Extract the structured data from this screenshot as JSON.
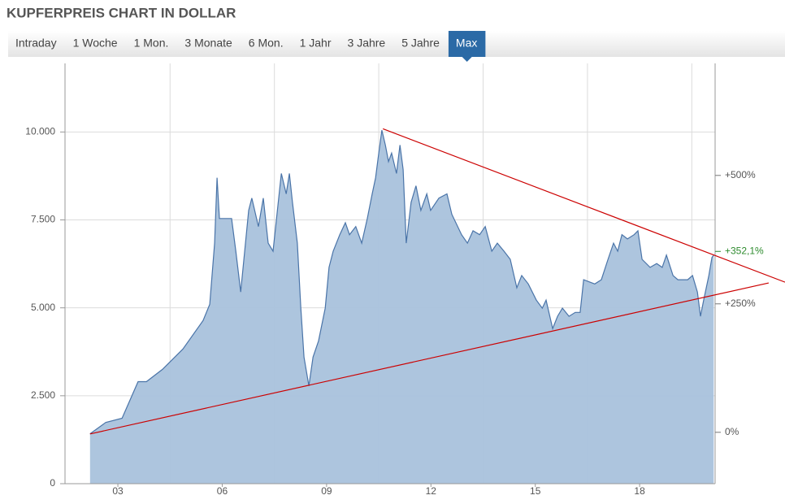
{
  "chart_data": {
    "type": "area",
    "title": "KUPFERPREIS CHART IN DOLLAR",
    "tabs": [
      {
        "label": "Intraday",
        "active": false
      },
      {
        "label": "1 Woche",
        "active": false
      },
      {
        "label": "1 Mon.",
        "active": false
      },
      {
        "label": "3 Monate",
        "active": false
      },
      {
        "label": "6 Mon.",
        "active": false
      },
      {
        "label": "1 Jahr",
        "active": false
      },
      {
        "label": "3 Jahre",
        "active": false
      },
      {
        "label": "5 Jahre",
        "active": false
      },
      {
        "label": "Max",
        "active": true
      }
    ],
    "x": [
      2.2,
      2.65,
      3.12,
      3.58,
      3.82,
      4.28,
      4.87,
      5.45,
      5.64,
      5.78,
      5.85,
      5.92,
      6.27,
      6.39,
      6.53,
      6.76,
      6.85,
      7.04,
      7.18,
      7.32,
      7.46,
      7.7,
      7.84,
      7.93,
      8.02,
      8.16,
      8.26,
      8.35,
      8.49,
      8.61,
      8.77,
      8.96,
      9.07,
      9.19,
      9.38,
      9.54,
      9.66,
      9.84,
      10.01,
      10.17,
      10.31,
      10.41,
      10.5,
      10.59,
      10.69,
      10.78,
      10.87,
      11.01,
      11.11,
      11.2,
      11.29,
      11.43,
      11.57,
      11.71,
      11.88,
      11.99,
      12.23,
      12.46,
      12.6,
      12.88,
      13.05,
      13.21,
      13.4,
      13.56,
      13.75,
      13.91,
      14.1,
      14.28,
      14.47,
      14.61,
      14.8,
      15.03,
      15.2,
      15.31,
      15.5,
      15.64,
      15.78,
      15.97,
      16.15,
      16.29,
      16.39,
      16.71,
      16.9,
      17.09,
      17.25,
      17.37,
      17.49,
      17.65,
      17.84,
      17.95,
      18.07,
      18.3,
      18.49,
      18.65,
      18.77,
      18.96,
      19.1,
      19.38,
      19.52,
      19.66,
      19.75,
      19.84,
      19.99,
      20.08,
      20.13
    ],
    "values": [
      1420,
      1740,
      1860,
      2900,
      2900,
      3250,
      3830,
      4640,
      5100,
      6840,
      8700,
      7540,
      7540,
      6610,
      5450,
      7770,
      8120,
      7310,
      8120,
      6840,
      6610,
      8820,
      8240,
      8820,
      8000,
      6840,
      4990,
      3600,
      2780,
      3600,
      4060,
      4990,
      6150,
      6610,
      7080,
      7420,
      7080,
      7310,
      6840,
      7540,
      8240,
      8700,
      9400,
      10050,
      9630,
      9160,
      9400,
      8820,
      9630,
      8930,
      6840,
      8000,
      8470,
      7770,
      8240,
      7770,
      8120,
      8240,
      7660,
      7080,
      6840,
      7190,
      7080,
      7310,
      6610,
      6840,
      6610,
      6380,
      5570,
      5920,
      5680,
      5220,
      4990,
      5220,
      4410,
      4760,
      4990,
      4760,
      4870,
      4870,
      5800,
      5680,
      5800,
      6380,
      6840,
      6610,
      7080,
      6960,
      7080,
      7190,
      6380,
      6150,
      6260,
      6150,
      6500,
      5920,
      5800,
      5800,
      5920,
      5450,
      4760,
      5220,
      5920,
      6430,
      6500
    ],
    "color": "#4a74a8",
    "fill_color": "#a9c2dc",
    "xlim": [
      1.48,
      20.17
    ],
    "xticks": [
      {
        "value": 3,
        "label": "03"
      },
      {
        "value": 6,
        "label": "06"
      },
      {
        "value": 9,
        "label": "09"
      },
      {
        "value": 12,
        "label": "12"
      },
      {
        "value": 15,
        "label": "15"
      },
      {
        "value": 18,
        "label": "18"
      }
    ],
    "xgrid": [
      4.5,
      7.5,
      10.5,
      13.5,
      16.5,
      19.5
    ],
    "ylim": [
      0,
      11950
    ],
    "yticks": [
      0,
      {
        "value": 2500,
        "label": "2.500"
      },
      {
        "value": 5000,
        "label": "5.000"
      },
      {
        "value": 7500,
        "label": "7.500"
      },
      {
        "value": 10000,
        "label": "10.000"
      }
    ],
    "y2lim": [
      -100,
      718
    ],
    "y2ticks": [
      {
        "value": 0,
        "label": "0%"
      },
      {
        "value": 250,
        "label": "+250%"
      },
      {
        "value": 500,
        "label": "+500%"
      }
    ],
    "current_change": {
      "value": 352.1,
      "label": "+352,1%",
      "color": "#2e8b2e"
    },
    "grid": true,
    "trendlines": [
      {
        "color": "#cc0000",
        "x": [
          10.62,
          22.18
        ],
        "values": [
          10090,
          5730
        ]
      },
      {
        "color": "#cc0000",
        "x": [
          2.2,
          21.71
        ],
        "values": [
          1415,
          5708
        ]
      }
    ]
  }
}
